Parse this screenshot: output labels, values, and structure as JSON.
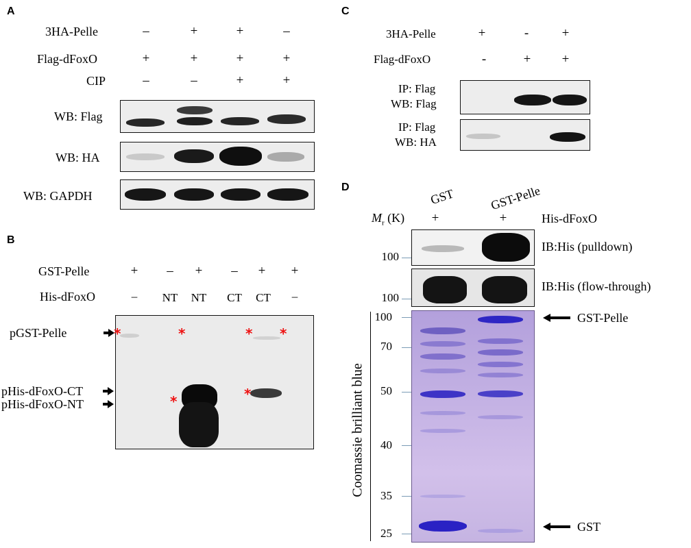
{
  "panelA": {
    "label": "A",
    "rows": [
      {
        "label": "3HA-Pelle",
        "signs": [
          "–",
          "+",
          "+",
          "–"
        ]
      },
      {
        "label": "Flag-dFoxO",
        "signs": [
          "+",
          "+",
          "+",
          "+"
        ]
      },
      {
        "label": "CIP",
        "signs": [
          "–",
          "–",
          "+",
          "+"
        ]
      }
    ],
    "blots": [
      "WB: Flag",
      "WB: HA",
      "WB: GAPDH"
    ]
  },
  "panelB": {
    "label": "B",
    "rows": [
      {
        "label": "GST-Pelle",
        "signs": [
          "+",
          "–",
          "+",
          "–",
          "+",
          "+"
        ]
      },
      {
        "label": "His-dFoxO",
        "signs": [
          "–",
          "NT",
          "NT",
          "CT",
          "CT",
          "–"
        ]
      }
    ],
    "band_labels": [
      "pGST-Pelle",
      "pHis-dFoxO-CT",
      "pHis-dFoxO-NT"
    ],
    "asterisk": "*"
  },
  "panelC": {
    "label": "C",
    "rows": [
      {
        "label": "3HA-Pelle",
        "signs": [
          "+",
          "-",
          "+"
        ]
      },
      {
        "label": "Flag-dFoxO",
        "signs": [
          "-",
          "+",
          "+"
        ]
      }
    ],
    "blots": [
      {
        "line1": "IP: Flag",
        "line2": "WB: Flag"
      },
      {
        "line1": "IP: Flag",
        "line2": "WB: HA"
      }
    ]
  },
  "panelD": {
    "label": "D",
    "columns": [
      "GST",
      "GST-Pelle"
    ],
    "mr_label": "M",
    "mr_sub": "r",
    "mr_unit": "(K)",
    "his_signs": [
      "+",
      "+"
    ],
    "his_label": "His-dFoxO",
    "ib_labels": [
      "IB:His (pulldown)",
      "IB:His (flow-through)"
    ],
    "ib_markers": [
      "100",
      "100"
    ],
    "gel_markers": [
      "100",
      "70",
      "50",
      "40",
      "35",
      "25"
    ],
    "side_label": "Coomassie brilliant blue",
    "arrow_labels": [
      "GST-Pelle",
      "GST"
    ]
  }
}
